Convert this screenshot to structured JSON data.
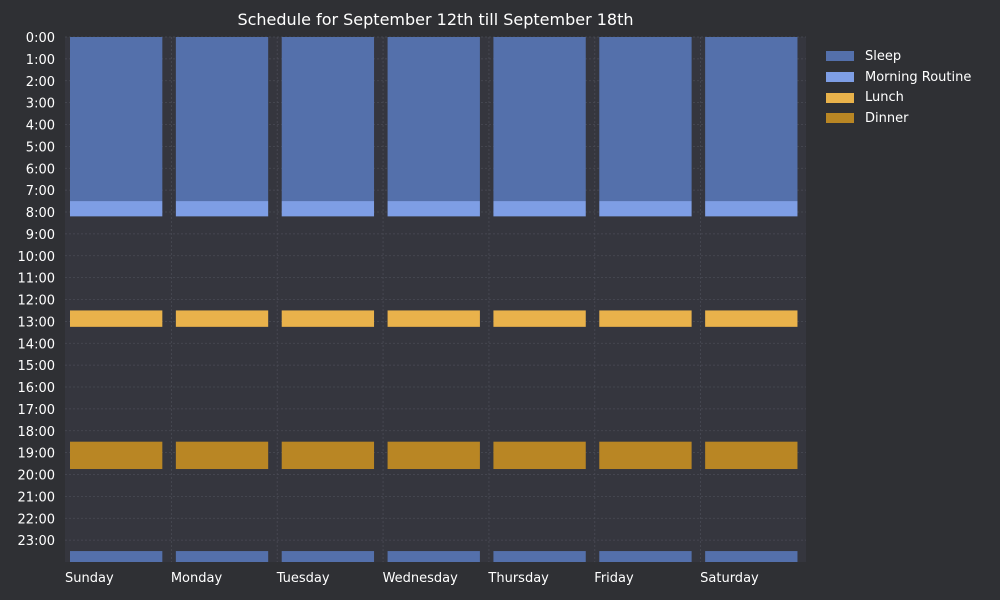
{
  "chart_data": {
    "type": "bar",
    "title": "Schedule for September 12th till September 18th",
    "xlabel": "",
    "ylabel": "",
    "categories": [
      "Sunday",
      "Monday",
      "Tuesday",
      "Wednesday",
      "Thursday",
      "Friday",
      "Saturday"
    ],
    "yticks": [
      "0:00",
      "1:00",
      "2:00",
      "3:00",
      "4:00",
      "5:00",
      "6:00",
      "7:00",
      "8:00",
      "9:00",
      "10:00",
      "11:00",
      "12:00",
      "13:00",
      "14:00",
      "15:00",
      "16:00",
      "17:00",
      "18:00",
      "19:00",
      "20:00",
      "21:00",
      "22:00",
      "23:00"
    ],
    "ylim": [
      0,
      24
    ],
    "y_inverted": true,
    "grid": true,
    "legend_position": "outside top-right",
    "series": [
      {
        "name": "Sleep",
        "color": "#5470ab",
        "segments": [
          [
            0,
            7.5
          ],
          [
            23.5,
            24
          ]
        ]
      },
      {
        "name": "Morning Routine",
        "color": "#7e9ee5",
        "segments": [
          [
            7.5,
            8.2
          ]
        ]
      },
      {
        "name": "Lunch",
        "color": "#e9b24b",
        "segments": [
          [
            12.5,
            13.25
          ]
        ]
      },
      {
        "name": "Dinner",
        "color": "#b98624",
        "segments": [
          [
            18.5,
            19.75
          ]
        ]
      }
    ]
  },
  "colors": {
    "background": "#2f3034",
    "plot_background": "#35363e",
    "grid": "#4a4b55"
  }
}
